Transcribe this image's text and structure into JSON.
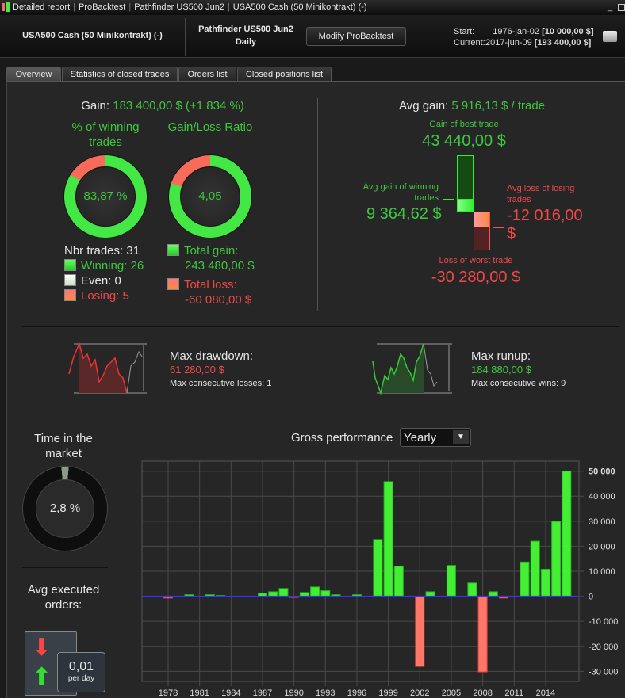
{
  "titlebar": {
    "crumbs": [
      "Detailed report",
      "ProBacktest",
      "Pathfinder US500 Jun2",
      "USA500 Cash (50 Minikontrakt) (-)"
    ]
  },
  "header": {
    "instrument": "USA500 Cash (50 Minikontrakt) (-)",
    "strategy": "Pathfinder US500 Jun2",
    "timeframe": "Daily",
    "modify_label": "Modify ProBacktest",
    "start_label": "Start:",
    "start_date": "1976-jan-02",
    "start_value": "[10 000,00 $]",
    "current_label": "Current:",
    "current_date": "2017-jun-09",
    "current_value": "[193 400,00 $]"
  },
  "tabs": [
    {
      "label": "Overview",
      "active": true
    },
    {
      "label": "Statistics of closed trades"
    },
    {
      "label": "Orders list"
    },
    {
      "label": "Closed positions list"
    }
  ],
  "summary": {
    "gain_label": "Gain:",
    "gain_value": "183 400,00 $ (+1 834 %)",
    "winning_title": "% of winning trades",
    "winning_pct": "83,87 %",
    "winning_fraction": 0.8387,
    "ratio_title": "Gain/Loss Ratio",
    "ratio_value": "4,05",
    "nbr_trades": "Nbr trades: 31",
    "winning": "Winning: 26",
    "even": "Even: 0",
    "losing": "Losing: 5",
    "total_gain_label": "Total gain:",
    "total_gain": "243 480,00 $",
    "total_loss_label": "Total loss:",
    "total_loss": "-60 080,00 $"
  },
  "avg": {
    "label": "Avg gain:",
    "value": "5 916,13 $ / trade",
    "best_label": "Gain of best trade",
    "best": "43 440,00 $",
    "avg_win_label": "Avg gain of winning trades",
    "avg_win": "9 364,62 $",
    "avg_loss_label": "Avg loss of losing trades",
    "avg_loss": "-12 016,00 $",
    "worst_label": "Loss of worst trade",
    "worst": "-30 280,00 $"
  },
  "drawdown": {
    "label": "Max drawdown:",
    "value": "61 280,00 $",
    "consec": "Max consecutive losses: 1"
  },
  "runup": {
    "label": "Max runup:",
    "value": "184 880,00 $",
    "consec": "Max consecutive wins: 9"
  },
  "time_market": {
    "label": "Time in the market",
    "value": "2,8 %",
    "fraction": 0.028
  },
  "orders": {
    "label": "Avg executed orders:",
    "value": "0,01",
    "unit": "per day"
  },
  "perf": {
    "label": "Gross performance",
    "period": "Yearly"
  },
  "colors": {
    "green": "#3ec83e",
    "red": "#f04848",
    "bar_green": "#44ee33",
    "bar_red": "#ff7766",
    "zero_line": "#3333ff"
  },
  "chart_data": {
    "type": "bar",
    "title": "Gross performance",
    "xlim": [
      1976,
      2017
    ],
    "ylim": [
      -34000,
      54000
    ],
    "grid": true,
    "xticks": [
      1978,
      1981,
      1984,
      1987,
      1990,
      1993,
      1996,
      1999,
      2002,
      2005,
      2008,
      2011,
      2014
    ],
    "yticks": [
      50000,
      40000,
      30000,
      20000,
      10000,
      0,
      -10000,
      -20000,
      -30000
    ],
    "ytick_labels": [
      "50 000",
      "40 000",
      "30 000",
      "20 000",
      "10 000",
      "0",
      "-10 000",
      "-20 000",
      "-30 000"
    ],
    "categories": [
      1978,
      1980,
      1982,
      1983,
      1987,
      1988,
      1989,
      1990,
      1991,
      1992,
      1993,
      1994,
      1996,
      1998,
      1999,
      2000,
      2002,
      2003,
      2005,
      2007,
      2008,
      2009,
      2010,
      2012,
      2013,
      2014,
      2015,
      2016
    ],
    "values": [
      -700,
      600,
      600,
      300,
      1200,
      1800,
      3100,
      -400,
      1500,
      3700,
      2200,
      600,
      600,
      22700,
      45800,
      12000,
      -28000,
      1800,
      12300,
      5300,
      -30200,
      1800,
      -700,
      13700,
      22000,
      10800,
      29900,
      50000
    ]
  }
}
